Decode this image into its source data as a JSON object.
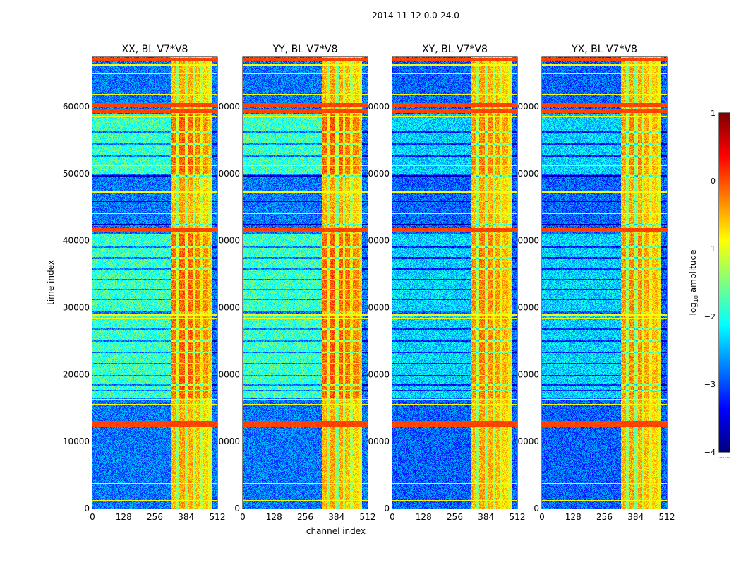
{
  "chart_data": {
    "type": "heatmap",
    "title": "2014-11-12 0.0-24.0",
    "xlabel": "channel index",
    "ylabel": "time index",
    "xlim": [
      0,
      512
    ],
    "ylim": [
      0,
      67500
    ],
    "x_ticks": [
      0,
      128,
      256,
      384,
      512
    ],
    "y_ticks": [
      0,
      10000,
      20000,
      30000,
      40000,
      50000,
      60000
    ],
    "colormap": "jet",
    "colorbar": {
      "label": "log10 amplitude",
      "label_main": "log",
      "label_sub": "10",
      "label_rest": " amplitude",
      "range": [
        -4,
        1
      ],
      "ticks": [
        -4,
        -3,
        -2,
        -1,
        0,
        1
      ],
      "tick_labels": [
        "−4",
        "−3",
        "−2",
        "−1",
        "0",
        "1"
      ],
      "below_mark": "......"
    },
    "panels": [
      {
        "name": "XX",
        "title": "XX, BL V7*V8",
        "base": -2.8,
        "band_level": -1.85,
        "high_region_boost": 0.35,
        "seed": 11
      },
      {
        "name": "YY",
        "title": "YY, BL V7*V8",
        "base": -2.8,
        "band_level": -1.85,
        "high_region_boost": 0.4,
        "seed": 23
      },
      {
        "name": "XY",
        "title": "XY, BL V7*V8",
        "base": -2.9,
        "band_level": -2.35,
        "high_region_boost": 0.2,
        "seed": 37
      },
      {
        "name": "YX",
        "title": "YX, BL V7*V8",
        "base": -2.9,
        "band_level": -2.35,
        "high_region_boost": 0.15,
        "seed": 51
      }
    ],
    "structure": {
      "hot_channel_range": [
        325,
        490
      ],
      "hot_channel_stripes": [
        [
          325,
          345,
          -0.55
        ],
        [
          345,
          356,
          -1.4
        ],
        [
          356,
          380,
          -0.45
        ],
        [
          380,
          392,
          -1.5
        ],
        [
          392,
          410,
          -0.5
        ],
        [
          410,
          420,
          -1.3
        ],
        [
          420,
          440,
          -0.6
        ],
        [
          440,
          452,
          -1.2
        ],
        [
          452,
          475,
          -0.7
        ],
        [
          475,
          490,
          -1.0
        ]
      ],
      "quiet_channel_cut": 480,
      "elevated_time_ranges": [
        [
          16500,
          29000
        ],
        [
          29500,
          41000
        ],
        [
          50000,
          59000
        ]
      ],
      "flagged_rows_orange": [
        12400,
        12800,
        41600,
        59300,
        60300,
        67000
      ],
      "flagged_rows_grey": [
        1200,
        3700,
        15500,
        16200,
        28400,
        28900,
        44100,
        47300,
        51300,
        58500,
        61800,
        65000,
        66200
      ],
      "dark_rows": [
        17600,
        18400,
        19800,
        21600,
        23300,
        25000,
        26800,
        31200,
        32700,
        34200,
        35800,
        37400,
        39000,
        42400,
        45900,
        49700,
        52600,
        54400,
        56200
      ]
    }
  }
}
